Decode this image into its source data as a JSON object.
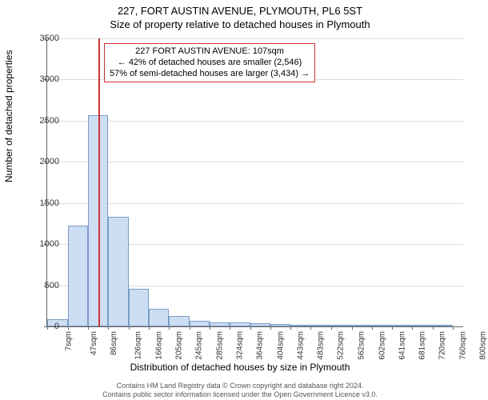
{
  "header": {
    "line1": "227, FORT AUSTIN AVENUE, PLYMOUTH, PL6 5ST",
    "line2": "Size of property relative to detached houses in Plymouth"
  },
  "chart": {
    "type": "histogram",
    "xlabel": "Distribution of detached houses by size in Plymouth",
    "ylabel": "Number of detached properties",
    "ylim": [
      0,
      3500
    ],
    "ytick_step": 500,
    "background_color": "#ffffff",
    "grid_color": "#dddddd",
    "axis_color": "#666666",
    "bar_fill": "#cdddf2",
    "bar_border": "#7a9cc6",
    "marker_color": "#cc3333",
    "marker_x_value": 107,
    "x_min": 7,
    "x_max": 820,
    "xticks": [
      7,
      47,
      86,
      126,
      166,
      205,
      245,
      285,
      324,
      364,
      404,
      443,
      483,
      522,
      562,
      602,
      641,
      681,
      720,
      760,
      800
    ],
    "xtick_labels": [
      "7sqm",
      "47sqm",
      "86sqm",
      "126sqm",
      "166sqm",
      "205sqm",
      "245sqm",
      "285sqm",
      "324sqm",
      "364sqm",
      "404sqm",
      "443sqm",
      "483sqm",
      "522sqm",
      "562sqm",
      "602sqm",
      "641sqm",
      "681sqm",
      "720sqm",
      "760sqm",
      "800sqm"
    ],
    "bars": [
      {
        "x": 7,
        "w": 40,
        "v": 90
      },
      {
        "x": 47,
        "w": 39,
        "v": 1225
      },
      {
        "x": 86,
        "w": 40,
        "v": 2570
      },
      {
        "x": 126,
        "w": 40,
        "v": 1330
      },
      {
        "x": 166,
        "w": 39,
        "v": 455
      },
      {
        "x": 205,
        "w": 40,
        "v": 215
      },
      {
        "x": 245,
        "w": 40,
        "v": 123
      },
      {
        "x": 285,
        "w": 39,
        "v": 68
      },
      {
        "x": 324,
        "w": 40,
        "v": 53
      },
      {
        "x": 364,
        "w": 40,
        "v": 46
      },
      {
        "x": 404,
        "w": 39,
        "v": 38
      },
      {
        "x": 443,
        "w": 40,
        "v": 25
      },
      {
        "x": 483,
        "w": 39,
        "v": 10
      },
      {
        "x": 522,
        "w": 40,
        "v": 5
      },
      {
        "x": 562,
        "w": 40,
        "v": 4
      },
      {
        "x": 602,
        "w": 39,
        "v": 3
      },
      {
        "x": 641,
        "w": 40,
        "v": 2
      },
      {
        "x": 681,
        "w": 39,
        "v": 2
      },
      {
        "x": 720,
        "w": 40,
        "v": 1
      },
      {
        "x": 760,
        "w": 40,
        "v": 1
      }
    ]
  },
  "annotation": {
    "line1": "227 FORT AUSTIN AVENUE: 107sqm",
    "line2": "← 42% of detached houses are smaller (2,546)",
    "line3": "57% of semi-detached houses are larger (3,434) →",
    "border_color": "#cc3333"
  },
  "footer": {
    "line1": "Contains HM Land Registry data © Crown copyright and database right 2024.",
    "line2": "Contains public sector information licensed under the Open Government Licence v3.0."
  }
}
